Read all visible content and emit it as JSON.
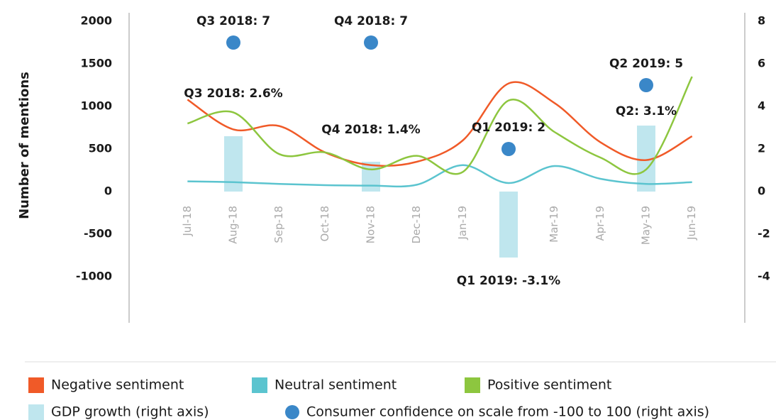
{
  "chart_data": {
    "type": "line",
    "y_label": "Number of mentions",
    "categories": [
      "Jul-18",
      "Aug-18",
      "Sep-18",
      "Oct-18",
      "Nov-18",
      "Dec-18",
      "Jan-19",
      "Feb-19",
      "Mar-19",
      "Apr-19",
      "May-19",
      "Jun-19"
    ],
    "ylim": [
      -1500,
      2100
    ],
    "yticks": [
      -1000,
      -500,
      0,
      500,
      1000,
      1500,
      2000
    ],
    "y2lim": [
      -6,
      8.4
    ],
    "y2ticks": [
      -4,
      -2,
      0,
      2,
      4,
      6,
      8
    ],
    "series": [
      {
        "name": "Negative sentiment",
        "color": "#f05a28",
        "values": [
          1080,
          730,
          770,
          460,
          310,
          350,
          600,
          1270,
          1040,
          580,
          370,
          650
        ]
      },
      {
        "name": "Neutral sentiment",
        "color": "#5bc4cf",
        "values": [
          120,
          110,
          90,
          75,
          70,
          80,
          310,
          100,
          300,
          150,
          90,
          110
        ]
      },
      {
        "name": "Positive sentiment",
        "color": "#8dc63f",
        "values": [
          800,
          930,
          440,
          460,
          260,
          420,
          230,
          1070,
          700,
          400,
          260,
          1350
        ]
      },
      {
        "name": "GDP growth (right axis)",
        "type": "bar",
        "axis": "y2",
        "color": "#bfe6ee",
        "values": [
          null,
          2.6,
          null,
          null,
          1.4,
          null,
          null,
          -3.1,
          null,
          null,
          3.1,
          null
        ],
        "value_labels": [
          null,
          "Q3 2018: 2.6%",
          null,
          null,
          "Q4 2018: 1.4%",
          null,
          null,
          "Q1 2019: -3.1%",
          null,
          null,
          "Q2: 3.1%",
          null
        ]
      },
      {
        "name": "Consumer confidence on scale from -100 to 100 (right axis)",
        "type": "scatter",
        "axis": "y2",
        "color": "#3a87c8",
        "values": [
          null,
          7,
          null,
          null,
          7,
          null,
          null,
          2,
          null,
          null,
          5,
          null
        ],
        "value_labels": [
          null,
          "Q3 2018: 7",
          null,
          null,
          "Q4 2018: 7",
          null,
          null,
          "Q1 2019: 2",
          null,
          null,
          "Q2 2019: 5",
          null
        ]
      }
    ]
  }
}
